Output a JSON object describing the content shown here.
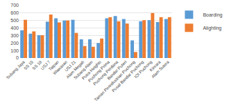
{
  "chart_data": {
    "type": "bar",
    "categories": [
      "Subang Jaya",
      "SS 15",
      "SS 18",
      "USJ 7",
      "Taipan",
      "Wawasan",
      "USJ 21",
      "Alam Megah",
      "Subang Alam",
      "Putra Heights",
      "Puchong Prima",
      "Puchong Perdana",
      "Bandar Puteri",
      "Taman Perindustrian Puchong",
      "Pusat Bandar Puchong",
      "IOI Puchong",
      "Kinrara",
      "Alam Sutera"
    ],
    "series": [
      {
        "name": "Boarding",
        "color": "#5B9BD5",
        "values": [
          370,
          325,
          305,
          485,
          530,
          500,
          510,
          250,
          250,
          200,
          530,
          560,
          520,
          235,
          490,
          505,
          480,
          520
        ]
      },
      {
        "name": "Alighting",
        "color": "#ED7D31",
        "values": [
          510,
          355,
          305,
          580,
          475,
          500,
          335,
          160,
          150,
          260,
          545,
          490,
          460,
          80,
          505,
          600,
          545,
          545
        ]
      }
    ],
    "ylim": [
      0,
      700
    ],
    "yticks": [
      0,
      100,
      200,
      300,
      400,
      500,
      600,
      700
    ],
    "grid": true,
    "legend": "right"
  }
}
